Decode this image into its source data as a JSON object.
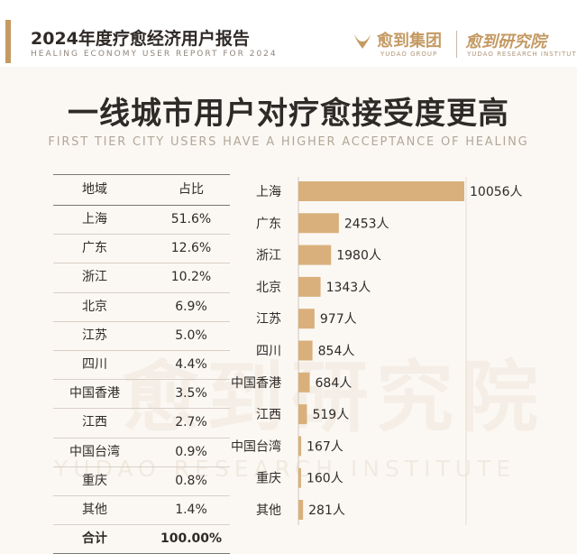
{
  "header": {
    "title": "2024年度疗愈经济用户报告",
    "subtitle": "HEALING ECONOMY USER REPORT FOR 2024",
    "logo1_cn": "愈到集团",
    "logo1_en": "YUDAO GROUP",
    "logo2_cn": "愈到研究院",
    "logo2_en": "YUDAO RESEARCH INSTITUTE"
  },
  "headline": "一线城市用户对疗愈接受度更高",
  "headline_en": "FIRST TIER CITY USERS HAVE A HIGHER ACCEPTANCE OF HEALING",
  "table": {
    "col_region": "地域",
    "col_share": "占比",
    "rows": [
      {
        "region": "上海",
        "share": "51.6%"
      },
      {
        "region": "广东",
        "share": "12.6%"
      },
      {
        "region": "浙江",
        "share": "10.2%"
      },
      {
        "region": "北京",
        "share": "6.9%"
      },
      {
        "region": "江苏",
        "share": "5.0%"
      },
      {
        "region": "四川",
        "share": "4.4%"
      },
      {
        "region": "中国香港",
        "share": "3.5%"
      },
      {
        "region": "江西",
        "share": "2.7%"
      },
      {
        "region": "中国台湾",
        "share": "0.9%"
      },
      {
        "region": "重庆",
        "share": "0.8%"
      },
      {
        "region": "其他",
        "share": "1.4%"
      }
    ],
    "total_label": "合计",
    "total_share": "100.00%"
  },
  "watermark": "愈到研究院",
  "watermark_en": "YUDAO RESEARCH INSTITUTE",
  "chart_data": {
    "type": "bar",
    "orientation": "horizontal",
    "categories": [
      "上海",
      "广东",
      "浙江",
      "北京",
      "江苏",
      "四川",
      "中国香港",
      "江西",
      "中国台湾",
      "重庆",
      "其他"
    ],
    "values": [
      10056,
      2453,
      1980,
      1343,
      977,
      854,
      684,
      519,
      167,
      160,
      281
    ],
    "value_suffix": "人",
    "title": "",
    "xlabel": "",
    "ylabel": "",
    "xlim": [
      0,
      10056
    ],
    "bar_color": "#d9b07c",
    "grid": false
  },
  "colors": {
    "accent": "#c49a63",
    "bar": "#d9b07c"
  }
}
